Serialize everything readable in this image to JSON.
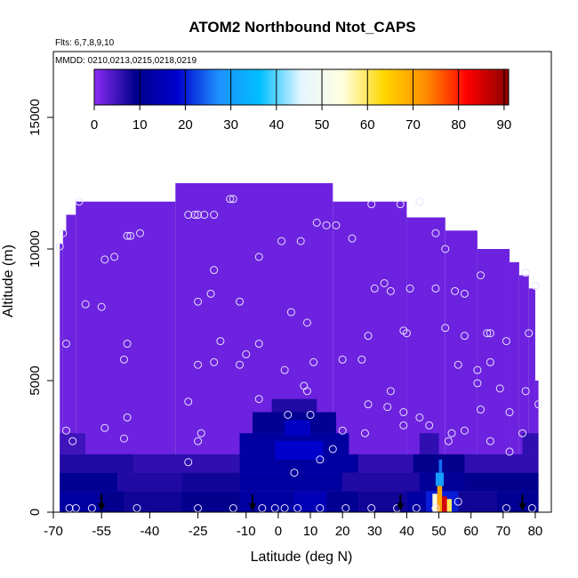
{
  "chart_data": {
    "type": "heatmap",
    "title": "ATOM2 Northbound Ntot_CAPS",
    "flights_label": "Flts: 6,7,8,9,10",
    "dates_label": "MMDD: 0210,0213,0215,0218,0219",
    "xlabel": "Latitude (deg N)",
    "ylabel": "Altitude (m)",
    "xlim": [
      -70,
      85
    ],
    "ylim": [
      0,
      17500
    ],
    "x_ticks": [
      "-70",
      "-55",
      "-40",
      "-25",
      "-10",
      "0",
      "10",
      "20",
      "30",
      "40",
      "50",
      "60",
      "70",
      "80"
    ],
    "x_tick_values": [
      -70,
      -55,
      -40,
      -25,
      -10,
      0,
      10,
      20,
      30,
      40,
      50,
      60,
      70,
      80
    ],
    "y_ticks": [
      "0",
      "5000",
      "10000",
      "15000"
    ],
    "y_tick_values": [
      0,
      5000,
      10000,
      15000
    ],
    "colorbar": {
      "ticks": [
        "0",
        "10",
        "20",
        "30",
        "40",
        "50",
        "60",
        "70",
        "80",
        "90"
      ],
      "tick_values": [
        0,
        10,
        20,
        30,
        40,
        50,
        60,
        70,
        80,
        90
      ],
      "range": [
        0,
        91
      ],
      "colors": [
        "#8b2cf5",
        "#00008b",
        "#0000cd",
        "#1e90ff",
        "#00bfff",
        "#e6f5ff",
        "#ffffe0",
        "#ffd700",
        "#ff8c00",
        "#ff0000",
        "#8b0000"
      ]
    },
    "background_value": 2,
    "envelope": [
      {
        "lat_min": -68,
        "lat_max": -67,
        "alt_top": 10200
      },
      {
        "lat_min": -67,
        "lat_max": -66,
        "alt_top": 10700
      },
      {
        "lat_min": -66,
        "lat_max": -63,
        "alt_top": 11300
      },
      {
        "lat_min": -63,
        "lat_max": -32,
        "alt_top": 11800
      },
      {
        "lat_min": -32,
        "lat_max": 17,
        "alt_top": 12500
      },
      {
        "lat_min": 17,
        "lat_max": 40,
        "alt_top": 11800
      },
      {
        "lat_min": 40,
        "lat_max": 52,
        "alt_top": 11200
      },
      {
        "lat_min": 52,
        "lat_max": 62,
        "alt_top": 10700
      },
      {
        "lat_min": 62,
        "lat_max": 72,
        "alt_top": 10000
      },
      {
        "lat_min": 72,
        "lat_max": 75,
        "alt_top": 9500
      },
      {
        "lat_min": 75,
        "lat_max": 78,
        "alt_top": 9000
      },
      {
        "lat_min": 78,
        "lat_max": 80,
        "alt_top": 8500
      },
      {
        "lat_min": 80,
        "lat_max": 81,
        "alt_top": 5000
      }
    ],
    "cells": [
      {
        "lat_min": -68,
        "lat_max": -56,
        "alt_min": 0,
        "alt_max": 800,
        "value": 12
      },
      {
        "lat_min": -56,
        "lat_max": -48,
        "alt_min": 0,
        "alt_max": 800,
        "value": 9
      },
      {
        "lat_min": -48,
        "lat_max": -30,
        "alt_min": 0,
        "alt_max": 800,
        "value": 8
      },
      {
        "lat_min": -30,
        "lat_max": -12,
        "alt_min": 0,
        "alt_max": 800,
        "value": 9
      },
      {
        "lat_min": -12,
        "lat_max": 5,
        "alt_min": 0,
        "alt_max": 800,
        "value": 12
      },
      {
        "lat_min": 5,
        "lat_max": 15,
        "alt_min": 0,
        "alt_max": 800,
        "value": 15
      },
      {
        "lat_min": 15,
        "lat_max": 25,
        "alt_min": 0,
        "alt_max": 800,
        "value": 10
      },
      {
        "lat_min": 25,
        "lat_max": 40,
        "alt_min": 0,
        "alt_max": 800,
        "value": 8
      },
      {
        "lat_min": 40,
        "lat_max": 46,
        "alt_min": 0,
        "alt_max": 800,
        "value": 12
      },
      {
        "lat_min": 46,
        "lat_max": 56,
        "alt_min": 0,
        "alt_max": 800,
        "value": 20
      },
      {
        "lat_min": 56,
        "lat_max": 68,
        "alt_min": 0,
        "alt_max": 800,
        "value": 8
      },
      {
        "lat_min": 68,
        "lat_max": 81,
        "alt_min": 0,
        "alt_max": 800,
        "value": 10
      },
      {
        "lat_min": -68,
        "lat_max": -50,
        "alt_min": 800,
        "alt_max": 1500,
        "value": 10
      },
      {
        "lat_min": -50,
        "lat_max": -30,
        "alt_min": 800,
        "alt_max": 1500,
        "value": 7
      },
      {
        "lat_min": -30,
        "lat_max": -12,
        "alt_min": 800,
        "alt_max": 1500,
        "value": 8
      },
      {
        "lat_min": -12,
        "lat_max": 20,
        "alt_min": 800,
        "alt_max": 1500,
        "value": 12
      },
      {
        "lat_min": 20,
        "lat_max": 44,
        "alt_min": 800,
        "alt_max": 1500,
        "value": 7
      },
      {
        "lat_min": 44,
        "lat_max": 58,
        "alt_min": 800,
        "alt_max": 1500,
        "value": 11
      },
      {
        "lat_min": 58,
        "lat_max": 81,
        "alt_min": 800,
        "alt_max": 1500,
        "value": 9
      },
      {
        "lat_min": -68,
        "lat_max": -45,
        "alt_min": 1500,
        "alt_max": 2200,
        "value": 7
      },
      {
        "lat_min": -45,
        "lat_max": -12,
        "alt_min": 1500,
        "alt_max": 2200,
        "value": 6
      },
      {
        "lat_min": -12,
        "lat_max": 25,
        "alt_min": 1500,
        "alt_max": 2200,
        "value": 12
      },
      {
        "lat_min": 25,
        "lat_max": 42,
        "alt_min": 1500,
        "alt_max": 2200,
        "value": 6
      },
      {
        "lat_min": 42,
        "lat_max": 58,
        "alt_min": 1500,
        "alt_max": 2200,
        "value": 9
      },
      {
        "lat_min": 58,
        "lat_max": 81,
        "alt_min": 1500,
        "alt_max": 2200,
        "value": 6
      },
      {
        "lat_min": -68,
        "lat_max": -60,
        "alt_min": 2200,
        "alt_max": 3000,
        "value": 5
      },
      {
        "lat_min": -12,
        "lat_max": 22,
        "alt_min": 2200,
        "alt_max": 3000,
        "value": 12
      },
      {
        "lat_min": 44,
        "lat_max": 50,
        "alt_min": 2200,
        "alt_max": 3000,
        "value": 6
      },
      {
        "lat_min": 76,
        "lat_max": 81,
        "alt_min": 2200,
        "alt_max": 3000,
        "value": 6
      },
      {
        "lat_min": -8,
        "lat_max": 18,
        "alt_min": 3000,
        "alt_max": 3800,
        "value": 10
      },
      {
        "lat_min": -2,
        "lat_max": 12,
        "alt_min": 3800,
        "alt_max": 4300,
        "value": 7
      },
      {
        "lat_min": -1,
        "lat_max": 14,
        "alt_min": 2000,
        "alt_max": 2700,
        "value": 18
      },
      {
        "lat_min": 2,
        "lat_max": 10,
        "alt_min": 2900,
        "alt_max": 3500,
        "value": 17
      },
      {
        "lat_min": 48,
        "lat_max": 49.5,
        "alt_min": 0,
        "alt_max": 700,
        "value": 55
      },
      {
        "lat_min": 49.5,
        "lat_max": 51,
        "alt_min": 0,
        "alt_max": 1000,
        "value": 70
      },
      {
        "lat_min": 51,
        "lat_max": 52.5,
        "alt_min": 0,
        "alt_max": 600,
        "value": 85
      },
      {
        "lat_min": 52.5,
        "lat_max": 54,
        "alt_min": 0,
        "alt_max": 500,
        "value": 60
      },
      {
        "lat_min": 49,
        "lat_max": 51.5,
        "alt_min": 1000,
        "alt_max": 1500,
        "value": 30
      },
      {
        "lat_min": 50,
        "lat_max": 51,
        "alt_min": 1500,
        "alt_max": 2000,
        "value": 25
      }
    ],
    "sample_points": [
      {
        "lat": -68,
        "alt": 10100
      },
      {
        "lat": -67,
        "alt": 10600
      },
      {
        "lat": -62,
        "alt": 11800
      },
      {
        "lat": -54,
        "alt": 9600
      },
      {
        "lat": -51,
        "alt": 9700
      },
      {
        "lat": -47,
        "alt": 10500
      },
      {
        "lat": -46,
        "alt": 10500
      },
      {
        "lat": -43,
        "alt": 10600
      },
      {
        "lat": -28,
        "alt": 11300
      },
      {
        "lat": -26,
        "alt": 11300
      },
      {
        "lat": -25,
        "alt": 11300
      },
      {
        "lat": -23,
        "alt": 11300
      },
      {
        "lat": -20,
        "alt": 11300
      },
      {
        "lat": -15,
        "alt": 11900
      },
      {
        "lat": -14,
        "alt": 11900
      },
      {
        "lat": -6,
        "alt": 9700
      },
      {
        "lat": 1,
        "alt": 10300
      },
      {
        "lat": 7,
        "alt": 10300
      },
      {
        "lat": 12,
        "alt": 11000
      },
      {
        "lat": 15,
        "alt": 10900
      },
      {
        "lat": 18,
        "alt": 10900
      },
      {
        "lat": 23,
        "alt": 10400
      },
      {
        "lat": 29,
        "alt": 11700
      },
      {
        "lat": 38,
        "alt": 11700
      },
      {
        "lat": 44,
        "alt": 11800
      },
      {
        "lat": 49,
        "alt": 10600
      },
      {
        "lat": 52,
        "alt": 10000
      },
      {
        "lat": 63,
        "alt": 9000
      },
      {
        "lat": 77,
        "alt": 9100
      },
      {
        "lat": -20,
        "alt": 9200
      },
      {
        "lat": -21,
        "alt": 8300
      },
      {
        "lat": -60,
        "alt": 7900
      },
      {
        "lat": -55,
        "alt": 7800
      },
      {
        "lat": -25,
        "alt": 8000
      },
      {
        "lat": -12,
        "alt": 8000
      },
      {
        "lat": 4,
        "alt": 7600
      },
      {
        "lat": 9,
        "alt": 7200
      },
      {
        "lat": 30,
        "alt": 8500
      },
      {
        "lat": 33,
        "alt": 8700
      },
      {
        "lat": 35,
        "alt": 8400
      },
      {
        "lat": 41,
        "alt": 8500
      },
      {
        "lat": 49,
        "alt": 8500
      },
      {
        "lat": 55,
        "alt": 8400
      },
      {
        "lat": 58,
        "alt": 8300
      },
      {
        "lat": 80,
        "alt": 8600
      },
      {
        "lat": -66,
        "alt": 6400
      },
      {
        "lat": -47,
        "alt": 6400
      },
      {
        "lat": -18,
        "alt": 6500
      },
      {
        "lat": -6,
        "alt": 6400
      },
      {
        "lat": 28,
        "alt": 6700
      },
      {
        "lat": 39,
        "alt": 6900
      },
      {
        "lat": 40,
        "alt": 6800
      },
      {
        "lat": 52,
        "alt": 7000
      },
      {
        "lat": 58,
        "alt": 6700
      },
      {
        "lat": 65,
        "alt": 6800
      },
      {
        "lat": 66,
        "alt": 6800
      },
      {
        "lat": 71,
        "alt": 6500
      },
      {
        "lat": 78,
        "alt": 6800
      },
      {
        "lat": -48,
        "alt": 5800
      },
      {
        "lat": -25,
        "alt": 5600
      },
      {
        "lat": -20,
        "alt": 5700
      },
      {
        "lat": -12,
        "alt": 5600
      },
      {
        "lat": -10,
        "alt": 6000
      },
      {
        "lat": 2,
        "alt": 5400
      },
      {
        "lat": 11,
        "alt": 5700
      },
      {
        "lat": 20,
        "alt": 5800
      },
      {
        "lat": 26,
        "alt": 5800
      },
      {
        "lat": 56,
        "alt": 5600
      },
      {
        "lat": 62,
        "alt": 5400
      },
      {
        "lat": 66,
        "alt": 5700
      },
      {
        "lat": 8,
        "alt": 4800
      },
      {
        "lat": 9,
        "alt": 4600
      },
      {
        "lat": 35,
        "alt": 4600
      },
      {
        "lat": 62,
        "alt": 4900
      },
      {
        "lat": 69,
        "alt": 4700
      },
      {
        "lat": 77,
        "alt": 4600
      },
      {
        "lat": -28,
        "alt": 4200
      },
      {
        "lat": -6,
        "alt": 4300
      },
      {
        "lat": 10,
        "alt": 3700
      },
      {
        "lat": 28,
        "alt": 4100
      },
      {
        "lat": 34,
        "alt": 4000
      },
      {
        "lat": 39,
        "alt": 3800
      },
      {
        "lat": 44,
        "alt": 3600
      },
      {
        "lat": 63,
        "alt": 3900
      },
      {
        "lat": 72,
        "alt": 3800
      },
      {
        "lat": 81,
        "alt": 4100
      },
      {
        "lat": -47,
        "alt": 3600
      },
      {
        "lat": 3,
        "alt": 3700
      },
      {
        "lat": -66,
        "alt": 3100
      },
      {
        "lat": -54,
        "alt": 3200
      },
      {
        "lat": -24,
        "alt": 3000
      },
      {
        "lat": 20,
        "alt": 3100
      },
      {
        "lat": 27,
        "alt": 3000
      },
      {
        "lat": 39,
        "alt": 3300
      },
      {
        "lat": 47,
        "alt": 3300
      },
      {
        "lat": 54,
        "alt": 3000
      },
      {
        "lat": 58,
        "alt": 3100
      },
      {
        "lat": 76,
        "alt": 3000
      },
      {
        "lat": -64,
        "alt": 2700
      },
      {
        "lat": -48,
        "alt": 2800
      },
      {
        "lat": -25,
        "alt": 2700
      },
      {
        "lat": 17,
        "alt": 2400
      },
      {
        "lat": 53,
        "alt": 2700
      },
      {
        "lat": 66,
        "alt": 2700
      },
      {
        "lat": 72,
        "alt": 2300
      },
      {
        "lat": -28,
        "alt": 1900
      },
      {
        "lat": 5,
        "alt": 1500
      },
      {
        "lat": 13,
        "alt": 2000
      },
      {
        "lat": -65,
        "alt": 150
      },
      {
        "lat": -63,
        "alt": 150
      },
      {
        "lat": -58,
        "alt": 150
      },
      {
        "lat": -44,
        "alt": 150
      },
      {
        "lat": -25,
        "alt": 150
      },
      {
        "lat": -14,
        "alt": 150
      },
      {
        "lat": -5,
        "alt": 150
      },
      {
        "lat": -1,
        "alt": 150
      },
      {
        "lat": 2,
        "alt": 150
      },
      {
        "lat": 6,
        "alt": 150
      },
      {
        "lat": 13,
        "alt": 150
      },
      {
        "lat": 21,
        "alt": 150
      },
      {
        "lat": 29,
        "alt": 150
      },
      {
        "lat": 37,
        "alt": 150
      },
      {
        "lat": 43,
        "alt": 150
      },
      {
        "lat": 49,
        "alt": 150
      },
      {
        "lat": 56,
        "alt": 400
      },
      {
        "lat": 71,
        "alt": 150
      },
      {
        "lat": 79,
        "alt": 150
      }
    ],
    "arrows_lat": [
      -55,
      -8,
      38,
      76
    ]
  }
}
